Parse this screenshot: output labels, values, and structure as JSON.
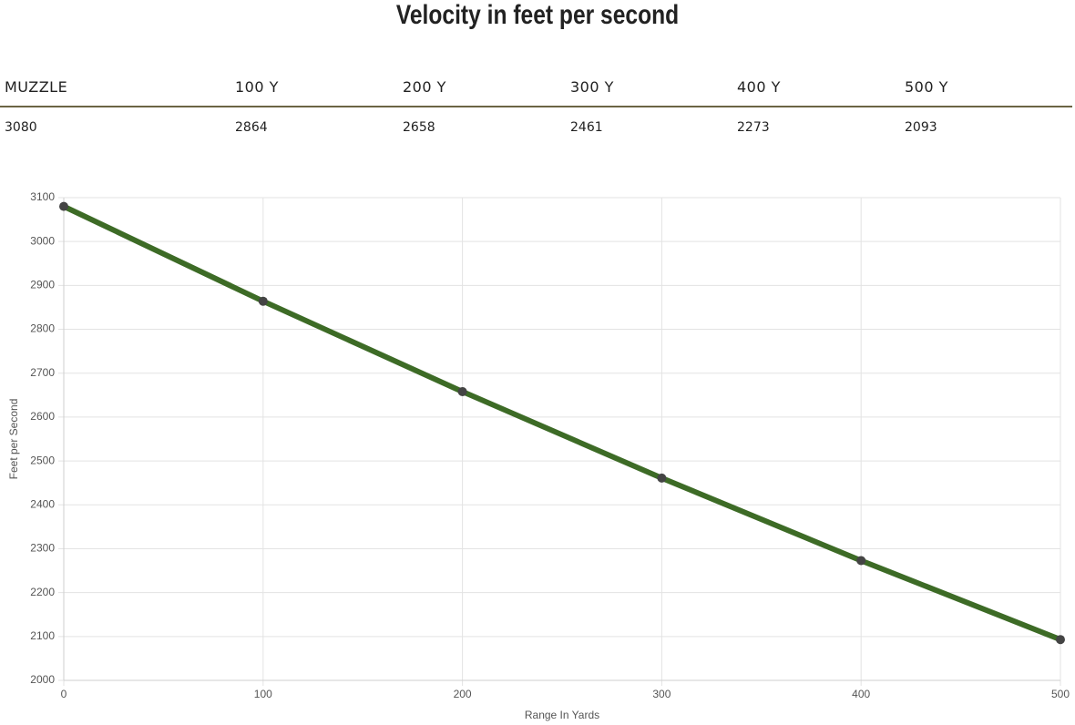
{
  "title": "Velocity in feet per second",
  "table": {
    "headers": [
      "MUZZLE",
      "100 Y",
      "200 Y",
      "300 Y",
      "400 Y",
      "500 Y"
    ],
    "rows": [
      [
        3080,
        2864,
        2658,
        2461,
        2273,
        2093
      ]
    ]
  },
  "chart_data": {
    "type": "line",
    "x": [
      0,
      100,
      200,
      300,
      400,
      500
    ],
    "series": [
      {
        "color": "#3d6b26",
        "marker_color": "#444444",
        "values": [
          3080,
          2864,
          2658,
          2461,
          2273,
          2093
        ]
      }
    ],
    "xlim": [
      0,
      500
    ],
    "xticks": [
      0,
      100,
      200,
      300,
      400,
      500
    ],
    "ylim": [
      2000,
      3100
    ],
    "yticks": [
      2000,
      2100,
      2200,
      2300,
      2400,
      2500,
      2600,
      2700,
      2800,
      2900,
      3000,
      3100
    ],
    "xlabel": "Range In Yards",
    "ylabel": "Feet per Second",
    "grid": true
  }
}
